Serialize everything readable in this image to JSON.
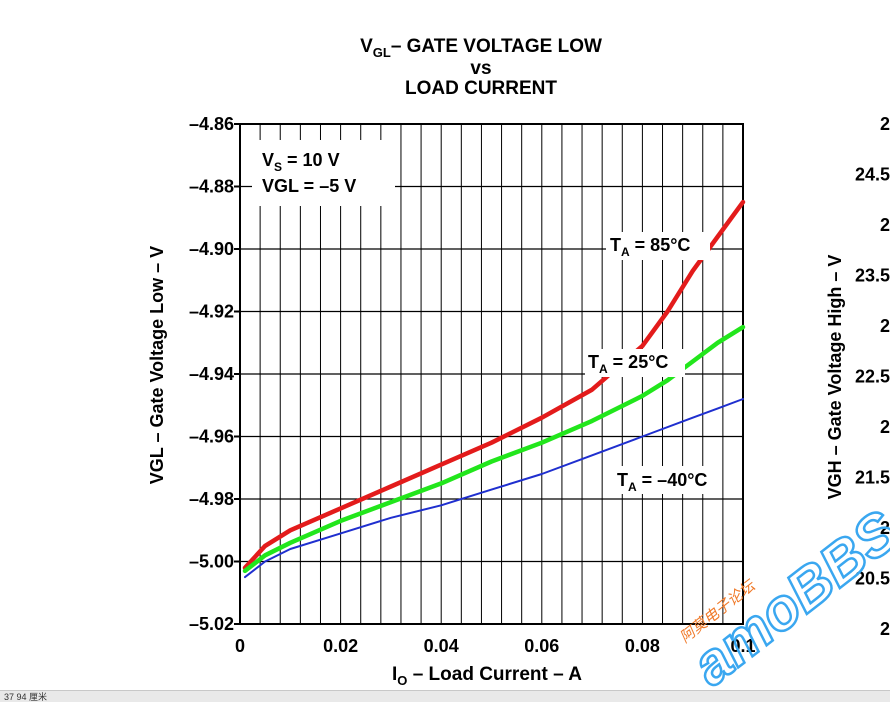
{
  "chart_data": {
    "type": "line",
    "title": "VGL– GATE VOLTAGE LOW",
    "title_line1_main": "V",
    "title_line1_sub": "GL",
    "title_line1_rest": "– GATE VOLTAGE LOW",
    "title_line2": "vs",
    "title_line3": "LOAD CURRENT",
    "xlabel_main": "I",
    "xlabel_sub": "O",
    "xlabel_rest": " – Load Current – A",
    "ylabel": "VGL – Gate Voltage Low – V",
    "xlim": [
      0,
      0.1
    ],
    "ylim": [
      -5.02,
      -4.86
    ],
    "x_ticks": [
      "0",
      "0.02",
      "0.04",
      "0.06",
      "0.08",
      "0.1"
    ],
    "y_ticks": [
      "–4.86",
      "–4.88",
      "–4.90",
      "–4.92",
      "–4.94",
      "–4.96",
      "–4.98",
      "–5.00",
      "–5.02"
    ],
    "grid": true,
    "conditions": [
      {
        "main": "V",
        "sub": "S",
        "rest": " = 10 V"
      },
      {
        "main": "VGL = –5 V",
        "sub": "",
        "rest": ""
      }
    ],
    "series": [
      {
        "name": "TA = 85°C",
        "label_main": "T",
        "label_sub": "A",
        "label_rest": " = 85°C",
        "color": "#e31b1b",
        "x": [
          0.001,
          0.005,
          0.01,
          0.02,
          0.03,
          0.04,
          0.05,
          0.06,
          0.07,
          0.08,
          0.085,
          0.09,
          0.095,
          0.1
        ],
        "y": [
          -5.002,
          -4.995,
          -4.99,
          -4.983,
          -4.976,
          -4.969,
          -4.962,
          -4.954,
          -4.945,
          -4.931,
          -4.92,
          -4.907,
          -4.896,
          -4.885
        ]
      },
      {
        "name": "TA = 25°C",
        "label_main": "T",
        "label_sub": "A",
        "label_rest": " = 25°C",
        "color": "#22e61c",
        "x": [
          0.001,
          0.005,
          0.01,
          0.02,
          0.03,
          0.04,
          0.05,
          0.06,
          0.07,
          0.08,
          0.085,
          0.09,
          0.095,
          0.1
        ],
        "y": [
          -5.003,
          -4.998,
          -4.994,
          -4.987,
          -4.981,
          -4.975,
          -4.968,
          -4.962,
          -4.955,
          -4.947,
          -4.942,
          -4.936,
          -4.93,
          -4.925
        ]
      },
      {
        "name": "TA = –40°C",
        "label_main": "T",
        "label_sub": "A",
        "label_rest": " = –40°C",
        "color": "#1f2fcf",
        "x": [
          0.001,
          0.005,
          0.01,
          0.02,
          0.03,
          0.04,
          0.05,
          0.06,
          0.07,
          0.08,
          0.09,
          0.095,
          0.1
        ],
        "y": [
          -5.005,
          -5.0,
          -4.996,
          -4.991,
          -4.986,
          -4.982,
          -4.977,
          -4.972,
          -4.966,
          -4.96,
          -4.954,
          -4.951,
          -4.948
        ]
      }
    ]
  },
  "right_chart": {
    "ylabel": "VGH – Gate Voltage High – V",
    "tick_fragments": [
      "2",
      "24.5",
      "2",
      "23.5",
      "2",
      "22.5",
      "2",
      "21.5",
      "2",
      "20.5",
      "2"
    ]
  },
  "watermark": {
    "text": "amoBBS",
    "subtitle": "阿莫电子论坛",
    "color": "#3aa7f0"
  },
  "status_bar": {
    "text": "37 94 厘米"
  }
}
